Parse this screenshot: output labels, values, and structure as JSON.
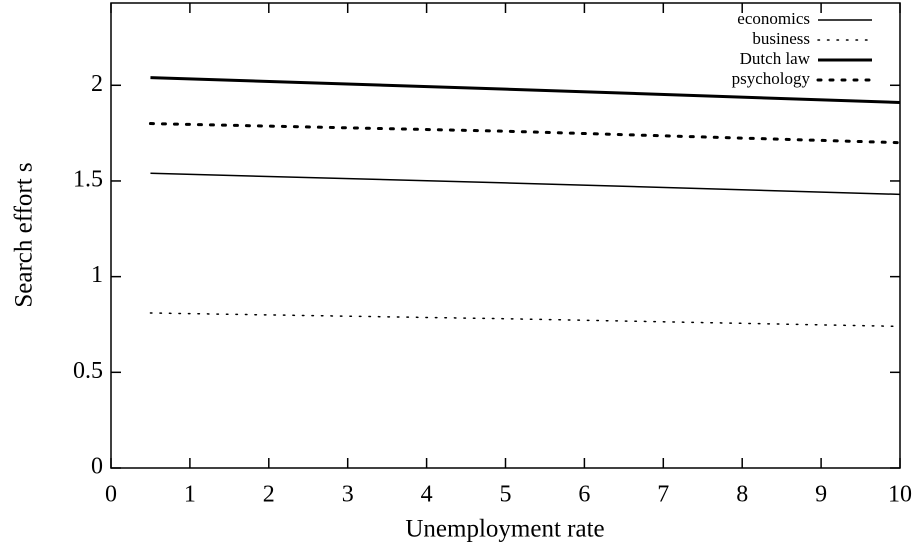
{
  "chart_data": {
    "type": "line",
    "x_label": "Unemployment rate",
    "y_label": "Search effort s",
    "x": [
      0.5,
      5,
      10
    ],
    "series": [
      {
        "name": "economics",
        "color": "#000000",
        "style": "solid",
        "width": 1.5,
        "values": [
          1.54,
          1.49,
          1.43
        ]
      },
      {
        "name": "business",
        "color": "#000000",
        "style": "dotted",
        "width": 1.5,
        "values": [
          0.81,
          0.78,
          0.74
        ]
      },
      {
        "name": "Dutch law",
        "color": "#000000",
        "style": "solid",
        "width": 3,
        "values": [
          2.04,
          1.98,
          1.91
        ]
      },
      {
        "name": "psychology",
        "color": "#000000",
        "style": "dotted",
        "width": 3,
        "values": [
          1.8,
          1.76,
          1.7
        ]
      }
    ],
    "xlim": [
      0,
      10
    ],
    "xticks": [
      0,
      1,
      2,
      3,
      4,
      5,
      6,
      7,
      8,
      9,
      10
    ],
    "ylim": [
      0,
      2.43
    ],
    "yticks": [
      0,
      0.5,
      1,
      1.5,
      2
    ],
    "grid": false,
    "legend": "top-right"
  }
}
